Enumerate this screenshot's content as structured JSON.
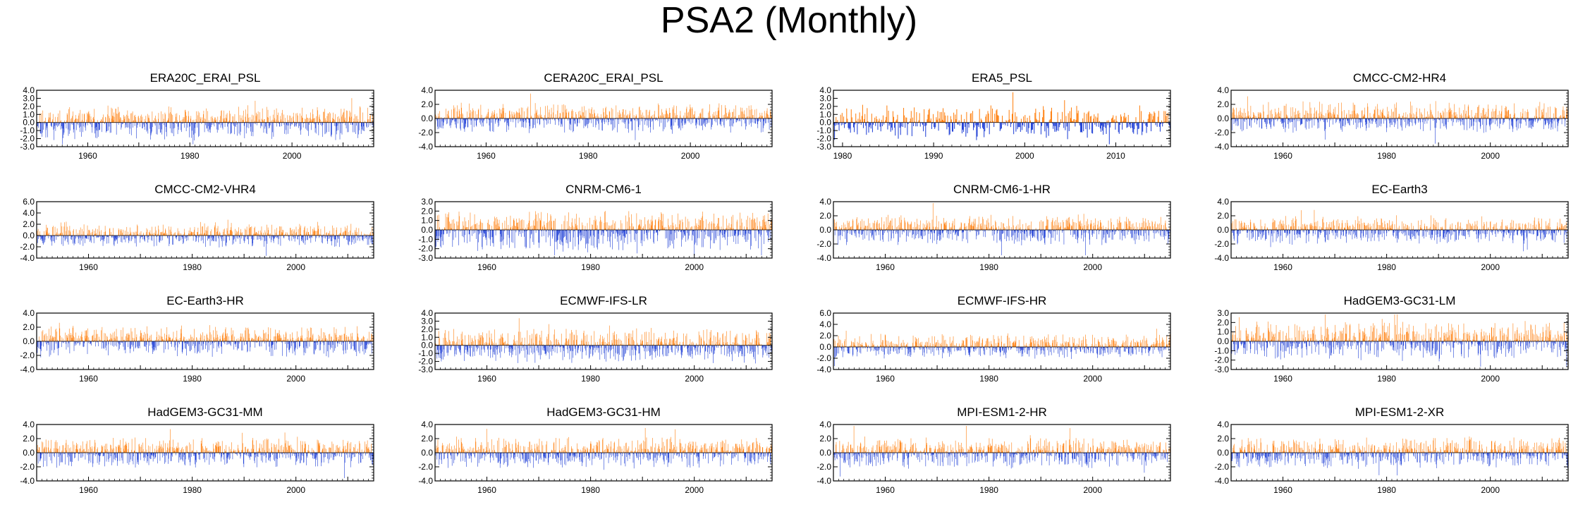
{
  "page": {
    "title": "PSA2 (Monthly)"
  },
  "colors": {
    "positive": "#ff7f0e",
    "negative": "#1f3fd6",
    "frame": "#000000"
  },
  "chart_data": [
    {
      "type": "bar",
      "title": "ERA20C_ERAI_PSL",
      "x_start": 1950,
      "x_end": 2016,
      "ylim": [
        -3.0,
        4.0
      ],
      "yticks": [
        "4.0",
        "3.0",
        "2.0",
        "1.0",
        "0.0",
        "-1.0",
        "-2.0",
        "-3.0"
      ],
      "xticks": [
        "1960",
        "1980",
        "2000"
      ],
      "xtick_values": [
        1960,
        1980,
        2000
      ],
      "amp_pos": 1.2,
      "amp_neg": 1.3,
      "seed": 11
    },
    {
      "type": "bar",
      "title": "CERA20C_ERAI_PSL",
      "x_start": 1950,
      "x_end": 2016,
      "ylim": [
        -4.0,
        4.0
      ],
      "yticks": [
        "4.0",
        "2.0",
        "0.0",
        "-2.0",
        "-4.0"
      ],
      "xticks": [
        "1960",
        "1980",
        "2000"
      ],
      "xtick_values": [
        1960,
        1980,
        2000
      ],
      "amp_pos": 1.3,
      "amp_neg": 1.2,
      "seed": 23
    },
    {
      "type": "bar",
      "title": "ERA5_PSL",
      "x_start": 1979,
      "x_end": 2016,
      "ylim": [
        -3.0,
        4.0
      ],
      "yticks": [
        "4.0",
        "3.0",
        "2.0",
        "1.0",
        "0.0",
        "-1.0",
        "-2.0",
        "-3.0"
      ],
      "xticks": [
        "1980",
        "1990",
        "2000",
        "2010"
      ],
      "xtick_values": [
        1980,
        1990,
        2000,
        2010
      ],
      "amp_pos": 1.3,
      "amp_neg": 1.3,
      "seed": 37
    },
    {
      "type": "bar",
      "title": "CMCC-CM2-HR4",
      "x_start": 1950,
      "x_end": 2015,
      "ylim": [
        -4.0,
        4.0
      ],
      "yticks": [
        "4.0",
        "2.0",
        "0.0",
        "-2.0",
        "-4.0"
      ],
      "xticks": [
        "1960",
        "1980",
        "2000"
      ],
      "xtick_values": [
        1960,
        1980,
        2000
      ],
      "amp_pos": 1.4,
      "amp_neg": 1.2,
      "seed": 41
    },
    {
      "type": "bar",
      "title": "CMCC-CM2-VHR4",
      "x_start": 1950,
      "x_end": 2015,
      "ylim": [
        -4.0,
        6.0
      ],
      "yticks": [
        "6.0",
        "4.0",
        "2.0",
        "0.0",
        "-2.0",
        "-4.0"
      ],
      "xticks": [
        "1960",
        "1980",
        "2000"
      ],
      "xtick_values": [
        1960,
        1980,
        2000
      ],
      "amp_pos": 1.4,
      "amp_neg": 1.2,
      "seed": 53
    },
    {
      "type": "bar",
      "title": "CNRM-CM6-1",
      "x_start": 1950,
      "x_end": 2015,
      "ylim": [
        -3.0,
        3.0
      ],
      "yticks": [
        "3.0",
        "2.0",
        "1.0",
        "0.0",
        "-1.0",
        "-2.0",
        "-3.0"
      ],
      "xticks": [
        "1960",
        "1980",
        "2000"
      ],
      "xtick_values": [
        1960,
        1980,
        2000
      ],
      "amp_pos": 1.2,
      "amp_neg": 1.3,
      "seed": 67
    },
    {
      "type": "bar",
      "title": "CNRM-CM6-1-HR",
      "x_start": 1950,
      "x_end": 2015,
      "ylim": [
        -4.0,
        4.0
      ],
      "yticks": [
        "4.0",
        "2.0",
        "0.0",
        "-2.0",
        "-4.0"
      ],
      "xticks": [
        "1960",
        "1980",
        "2000"
      ],
      "xtick_values": [
        1960,
        1980,
        2000
      ],
      "amp_pos": 1.3,
      "amp_neg": 1.3,
      "seed": 71
    },
    {
      "type": "bar",
      "title": "EC-Earth3",
      "x_start": 1950,
      "x_end": 2015,
      "ylim": [
        -4.0,
        4.0
      ],
      "yticks": [
        "4.0",
        "2.0",
        "0.0",
        "-2.0",
        "-4.0"
      ],
      "xticks": [
        "1960",
        "1980",
        "2000"
      ],
      "xtick_values": [
        1960,
        1980,
        2000
      ],
      "amp_pos": 1.2,
      "amp_neg": 1.2,
      "seed": 83
    },
    {
      "type": "bar",
      "title": "EC-Earth3-HR",
      "x_start": 1950,
      "x_end": 2015,
      "ylim": [
        -4.0,
        4.0
      ],
      "yticks": [
        "4.0",
        "2.0",
        "0.0",
        "-2.0",
        "-4.0"
      ],
      "xticks": [
        "1960",
        "1980",
        "2000"
      ],
      "xtick_values": [
        1960,
        1980,
        2000
      ],
      "amp_pos": 1.3,
      "amp_neg": 1.3,
      "seed": 97
    },
    {
      "type": "bar",
      "title": "ECMWF-IFS-LR",
      "x_start": 1950,
      "x_end": 2015,
      "ylim": [
        -3.0,
        4.0
      ],
      "yticks": [
        "4.0",
        "3.0",
        "2.0",
        "1.0",
        "0.0",
        "-1.0",
        "-2.0",
        "-3.0"
      ],
      "xticks": [
        "1960",
        "1980",
        "2000"
      ],
      "xtick_values": [
        1960,
        1980,
        2000
      ],
      "amp_pos": 1.3,
      "amp_neg": 1.3,
      "seed": 101
    },
    {
      "type": "bar",
      "title": "ECMWF-IFS-HR",
      "x_start": 1950,
      "x_end": 2015,
      "ylim": [
        -4.0,
        6.0
      ],
      "yticks": [
        "6.0",
        "4.0",
        "2.0",
        "0.0",
        "-2.0",
        "-4.0"
      ],
      "xticks": [
        "1960",
        "1980",
        "2000"
      ],
      "xtick_values": [
        1960,
        1980,
        2000
      ],
      "amp_pos": 1.4,
      "amp_neg": 1.2,
      "seed": 113
    },
    {
      "type": "bar",
      "title": "HadGEM3-GC31-LM",
      "x_start": 1950,
      "x_end": 2015,
      "ylim": [
        -3.0,
        3.0
      ],
      "yticks": [
        "3.0",
        "2.0",
        "1.0",
        "0.0",
        "-1.0",
        "-2.0",
        "-3.0"
      ],
      "xticks": [
        "1960",
        "1980",
        "2000"
      ],
      "xtick_values": [
        1960,
        1980,
        2000
      ],
      "amp_pos": 1.3,
      "amp_neg": 1.2,
      "seed": 127
    },
    {
      "type": "bar",
      "title": "HadGEM3-GC31-MM",
      "x_start": 1950,
      "x_end": 2015,
      "ylim": [
        -4.0,
        4.0
      ],
      "yticks": [
        "4.0",
        "2.0",
        "0.0",
        "-2.0",
        "-4.0"
      ],
      "xticks": [
        "1960",
        "1980",
        "2000"
      ],
      "xtick_values": [
        1960,
        1980,
        2000
      ],
      "amp_pos": 1.3,
      "amp_neg": 1.3,
      "seed": 131
    },
    {
      "type": "bar",
      "title": "HadGEM3-GC31-HM",
      "x_start": 1950,
      "x_end": 2015,
      "ylim": [
        -4.0,
        4.0
      ],
      "yticks": [
        "4.0",
        "2.0",
        "0.0",
        "-2.0",
        "-4.0"
      ],
      "xticks": [
        "1960",
        "1980",
        "2000"
      ],
      "xtick_values": [
        1960,
        1980,
        2000
      ],
      "amp_pos": 1.3,
      "amp_neg": 1.3,
      "seed": 139
    },
    {
      "type": "bar",
      "title": "MPI-ESM1-2-HR",
      "x_start": 1950,
      "x_end": 2015,
      "ylim": [
        -4.0,
        4.0
      ],
      "yticks": [
        "4.0",
        "2.0",
        "0.0",
        "-2.0",
        "-4.0"
      ],
      "xticks": [
        "1960",
        "1980",
        "2000"
      ],
      "xtick_values": [
        1960,
        1980,
        2000
      ],
      "amp_pos": 1.3,
      "amp_neg": 1.3,
      "seed": 149
    },
    {
      "type": "bar",
      "title": "MPI-ESM1-2-XR",
      "x_start": 1950,
      "x_end": 2015,
      "ylim": [
        -4.0,
        4.0
      ],
      "yticks": [
        "4.0",
        "2.0",
        "0.0",
        "-2.0",
        "-4.0"
      ],
      "xticks": [
        "1960",
        "1980",
        "2000"
      ],
      "xtick_values": [
        1960,
        1980,
        2000
      ],
      "amp_pos": 1.3,
      "amp_neg": 1.3,
      "seed": 157
    }
  ]
}
